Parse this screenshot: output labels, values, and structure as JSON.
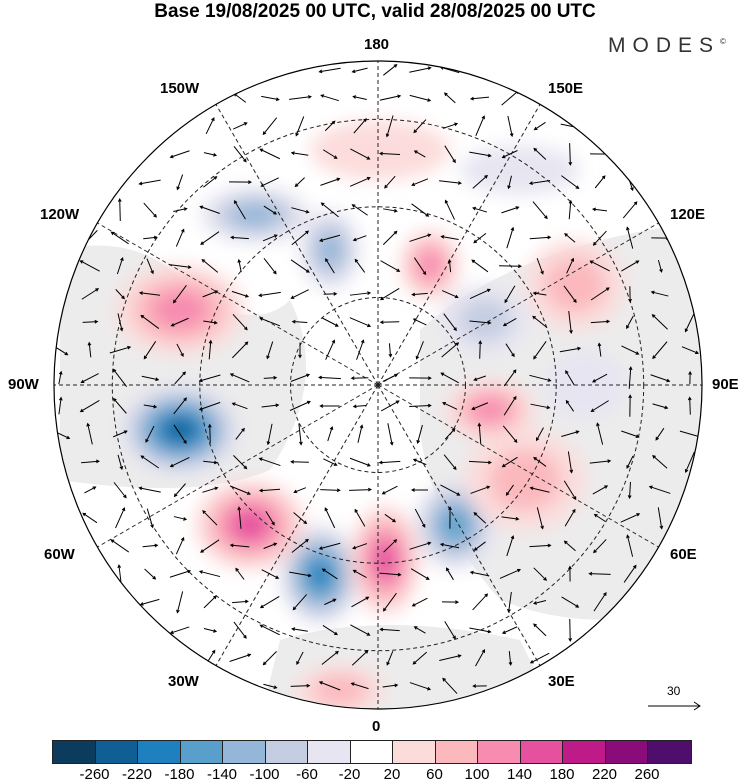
{
  "title": "Base 19/08/2025 00 UTC, valid 28/08/2025 00 UTC",
  "logo": "MODES",
  "logo_mark": "©",
  "longitude_labels": {
    "top": "180",
    "bottom": "0",
    "left": "90W",
    "right": "90E",
    "ul1": "150W",
    "ul2": "120W",
    "ur1": "150E",
    "ur2": "120E",
    "ll1": "60W",
    "ll2": "30W",
    "lr1": "60E",
    "lr2": "30E"
  },
  "reference_vector": "30",
  "colorbar": {
    "colors": [
      "#0b3c5d",
      "#0f5f95",
      "#1f80bf",
      "#58a0cb",
      "#94b6d8",
      "#c5cde2",
      "#e7e5f1",
      "#ffffff",
      "#fcdcdb",
      "#fbb8bd",
      "#f78bb0",
      "#e5509f",
      "#be1a88",
      "#8a0b7a",
      "#4f0e6b"
    ],
    "ticks": [
      "-260",
      "-220",
      "-180",
      "-140",
      "-100",
      "-60",
      "-20",
      "20",
      "60",
      "100",
      "140",
      "180",
      "220",
      "260"
    ]
  }
}
